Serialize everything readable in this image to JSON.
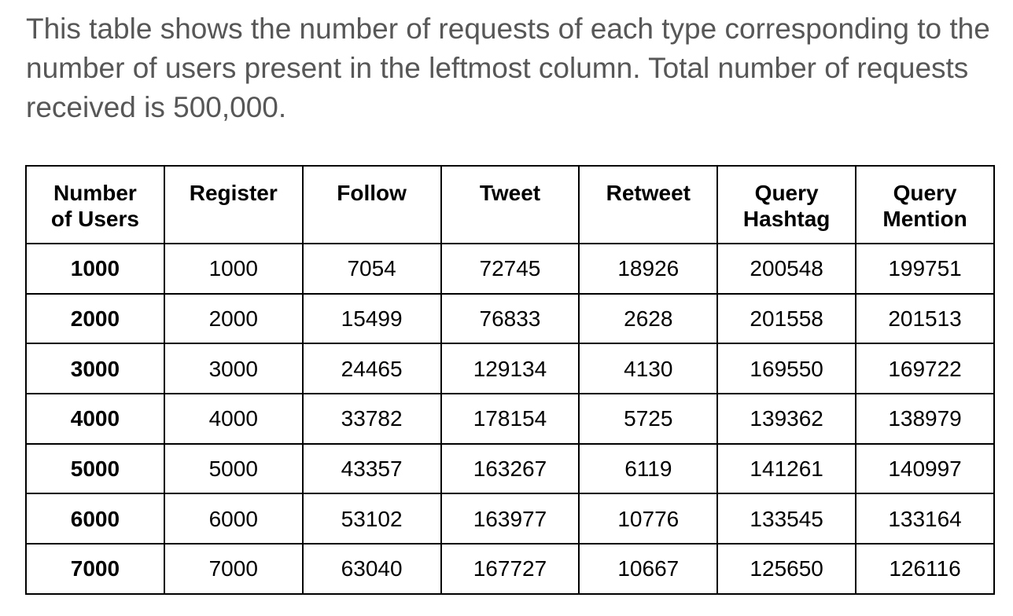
{
  "intro": {
    "text": "This table shows the number of requests of each type corresponding to the number of users present in the leftmost column. Total number of requests received is 500,000."
  },
  "table": {
    "headers": [
      [
        "Number",
        "of Users"
      ],
      [
        "Register"
      ],
      [
        "Follow"
      ],
      [
        "Tweet"
      ],
      [
        "Retweet"
      ],
      [
        "Query",
        "Hashtag"
      ],
      [
        "Query",
        "Mention"
      ]
    ],
    "rows": [
      [
        "1000",
        "1000",
        "7054",
        "72745",
        "18926",
        "200548",
        "199751"
      ],
      [
        "2000",
        "2000",
        "15499",
        "76833",
        "2628",
        "201558",
        "201513"
      ],
      [
        "3000",
        "3000",
        "24465",
        "129134",
        "4130",
        "169550",
        "169722"
      ],
      [
        "4000",
        "4000",
        "33782",
        "178154",
        "5725",
        "139362",
        "138979"
      ],
      [
        "5000",
        "5000",
        "43357",
        "163267",
        "6119",
        "141261",
        "140997"
      ],
      [
        "6000",
        "6000",
        "53102",
        "163977",
        "10776",
        "133545",
        "133164"
      ],
      [
        "7000",
        "7000",
        "63040",
        "167727",
        "10667",
        "125650",
        "126116"
      ]
    ]
  },
  "colors": {
    "intro_text": "#575757",
    "table_text": "#000000",
    "border": "#000000",
    "background": "#ffffff"
  }
}
